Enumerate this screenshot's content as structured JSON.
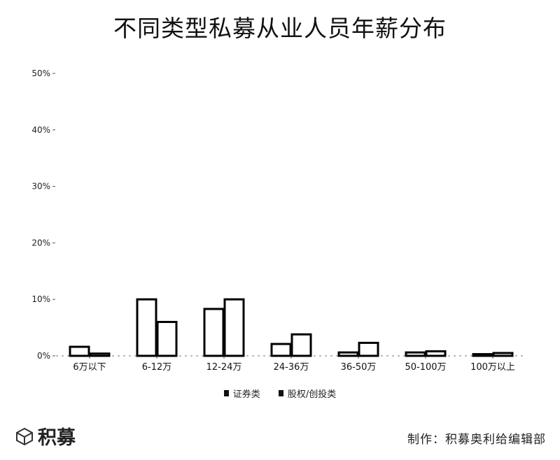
{
  "title": "不同类型私募从业人员年薪分布",
  "footer": {
    "brand": "积募",
    "credit": "制作：积募奥利给编辑部"
  },
  "colors": {
    "bar_stroke": "#000000",
    "bar_fill": "#ffffff",
    "text": "#111111"
  },
  "chart_data": {
    "type": "bar",
    "title": "不同类型私募从业人员年薪分布",
    "xlabel": "",
    "ylabel": "",
    "ylim": [
      0,
      50
    ],
    "yticks": [
      "0%",
      "10%",
      "20%",
      "30%",
      "40%",
      "50%"
    ],
    "grid": false,
    "legend_position": "bottom-center",
    "categories": [
      "6万以下",
      "6-12万",
      "12-24万",
      "24-36万",
      "36-50万",
      "50-100万",
      "100万以上"
    ],
    "series": [
      {
        "name": "证券类",
        "values": [
          1.6,
          10.0,
          8.3,
          2.1,
          0.6,
          0.6,
          0.3
        ]
      },
      {
        "name": "股权/创投类",
        "values": [
          0.4,
          6.0,
          10.0,
          3.8,
          2.3,
          0.8,
          0.5
        ]
      }
    ]
  }
}
